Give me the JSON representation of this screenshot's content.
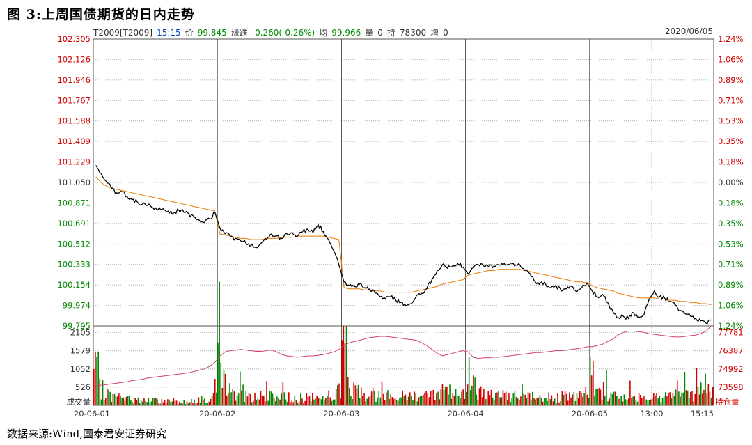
{
  "figure_title": "图 3:上周国债期货的日内走势",
  "source_note": "数据来源:Wind,国泰君安证券研究",
  "header": {
    "contract": "T2009[T2009]",
    "time": "15:15",
    "price_label": "价",
    "price": "99.845",
    "change_label": "涨跌",
    "change": "-0.260(-0.26%)",
    "avg_label": "均",
    "avg": "99.966",
    "volume_label": "量",
    "volume": "0",
    "oi_label": "持",
    "oi": "78300",
    "inc_label": "增",
    "inc": "0",
    "date": "2020/06/05"
  },
  "colors": {
    "up": "#d40000",
    "down": "#008800",
    "price_line": "#000000",
    "avg_line": "#e87a00",
    "oi_line": "#d0406a",
    "grid": "#9a9a9a"
  },
  "chart_data": [
    {
      "type": "line",
      "title": "",
      "y_left_ticks": [
        "102.305",
        "102.126",
        "101.946",
        "101.767",
        "101.588",
        "101.409",
        "101.229",
        "101.050",
        "100.871",
        "100.691",
        "100.512",
        "100.333",
        "100.154",
        "99.974",
        "99.795"
      ],
      "y_right_ticks": [
        "1.24%",
        "1.06%",
        "0.89%",
        "0.71%",
        "0.53%",
        "0.35%",
        "0.18%",
        "0.00%",
        "0.18%",
        "0.35%",
        "0.53%",
        "0.71%",
        "0.89%",
        "1.06%",
        "1.24%"
      ],
      "ylim": [
        99.795,
        102.305
      ],
      "reference_price": 101.05,
      "x_labels": [
        "20-06-01",
        "20-06-02",
        "20-06-03",
        "20-06-04",
        "20-06-05",
        "13:00",
        "15:15"
      ],
      "series": [
        {
          "key": "price",
          "values": [
            101.2,
            101.13,
            101.06,
            101.0,
            100.96,
            100.97,
            100.93,
            100.9,
            100.88,
            100.86,
            100.85,
            100.83,
            100.81,
            100.82,
            100.8,
            100.78,
            100.81,
            100.79,
            100.77,
            100.75,
            100.72,
            100.7,
            100.73,
            100.79,
            100.65,
            100.6,
            100.58,
            100.56,
            100.54,
            100.52,
            100.5,
            100.48,
            100.52,
            100.55,
            100.6,
            100.58,
            100.56,
            100.6,
            100.61,
            100.58,
            100.62,
            100.64,
            100.61,
            100.68,
            100.62,
            100.55,
            100.45,
            100.33,
            100.18,
            100.15,
            100.14,
            100.16,
            100.13,
            100.12,
            100.08,
            100.05,
            100.03,
            100.05,
            100.02,
            100.0,
            99.97,
            99.99,
            100.06,
            100.08,
            100.12,
            100.2,
            100.28,
            100.33,
            100.3,
            100.32,
            100.34,
            100.31,
            100.25,
            100.3,
            100.33,
            100.32,
            100.31,
            100.32,
            100.33,
            100.34,
            100.33,
            100.32,
            100.33,
            100.28,
            100.25,
            100.18,
            100.17,
            100.16,
            100.13,
            100.15,
            100.1,
            100.12,
            100.14,
            100.09,
            100.13,
            100.17,
            100.1,
            100.05,
            100.07,
            100.0,
            99.92,
            99.87,
            99.88,
            99.86,
            99.91,
            99.87,
            99.89,
            100.03,
            100.1,
            100.05,
            100.04,
            100.01,
            99.98,
            99.93,
            99.9,
            99.88,
            99.86,
            99.84,
            99.82,
            99.845
          ]
        },
        {
          "key": "avg",
          "values": [
            101.1,
            101.05,
            101.02,
            101.0,
            100.99,
            100.98,
            100.97,
            100.96,
            100.95,
            100.94,
            100.93,
            100.92,
            100.91,
            100.9,
            100.89,
            100.88,
            100.87,
            100.86,
            100.85,
            100.84,
            100.83,
            100.82,
            100.81,
            100.8,
            100.6,
            100.59,
            100.58,
            100.57,
            100.56,
            100.56,
            100.55,
            100.55,
            100.55,
            100.56,
            100.56,
            100.56,
            100.57,
            100.57,
            100.57,
            100.58,
            100.58,
            100.58,
            100.58,
            100.58,
            100.58,
            100.57,
            100.56,
            100.55,
            100.13,
            100.12,
            100.12,
            100.12,
            100.11,
            100.11,
            100.1,
            100.1,
            100.09,
            100.09,
            100.09,
            100.09,
            100.09,
            100.09,
            100.1,
            100.11,
            100.12,
            100.13,
            100.14,
            100.16,
            100.17,
            100.18,
            100.19,
            100.2,
            100.24,
            100.25,
            100.26,
            100.27,
            100.28,
            100.28,
            100.29,
            100.29,
            100.29,
            100.29,
            100.29,
            100.28,
            100.27,
            100.26,
            100.25,
            100.24,
            100.23,
            100.22,
            100.21,
            100.2,
            100.19,
            100.18,
            100.18,
            100.17,
            100.15,
            100.13,
            100.12,
            100.11,
            100.1,
            100.08,
            100.07,
            100.06,
            100.05,
            100.04,
            100.04,
            100.04,
            100.04,
            100.03,
            100.03,
            100.02,
            100.02,
            100.01,
            100.01,
            100.0,
            100.0,
            99.99,
            99.99,
            99.98
          ]
        }
      ]
    },
    {
      "type": "bar",
      "title": "",
      "ylabel": "成交量",
      "y2label": "持仓量",
      "y_left_ticks": [
        "2105",
        "1579",
        "1052",
        "526"
      ],
      "y_right_ticks": [
        "77781",
        "76387",
        "74992",
        "73598"
      ],
      "ylim": [
        0,
        2300
      ],
      "volume_profile": [
        1200,
        600,
        450,
        350,
        300,
        260,
        230,
        210,
        200,
        190,
        180,
        170,
        170,
        160,
        160,
        150,
        150,
        150,
        160,
        170,
        180,
        190,
        220,
        380,
        1500,
        800,
        600,
        500,
        420,
        380,
        360,
        340,
        330,
        320,
        320,
        310,
        300,
        300,
        290,
        290,
        280,
        280,
        290,
        300,
        320,
        350,
        400,
        650,
        1900,
        900,
        650,
        520,
        460,
        420,
        400,
        380,
        360,
        350,
        340,
        340,
        340,
        350,
        380,
        420,
        460,
        500,
        520,
        500,
        480,
        470,
        480,
        600,
        1300,
        700,
        560,
        470,
        420,
        390,
        370,
        350,
        340,
        330,
        320,
        310,
        300,
        300,
        300,
        300,
        300,
        310,
        320,
        330,
        340,
        360,
        380,
        420,
        1100,
        600,
        480,
        420,
        380,
        360,
        350,
        340,
        340,
        350,
        360,
        400,
        420,
        380,
        360,
        350,
        360,
        380,
        400,
        420,
        460,
        520,
        620,
        800
      ],
      "open_interest": [
        73700,
        73750,
        73800,
        73850,
        73900,
        73950,
        74000,
        74100,
        74150,
        74200,
        74300,
        74350,
        74400,
        74450,
        74500,
        74550,
        74600,
        74650,
        74700,
        74800,
        74900,
        75000,
        75200,
        75500,
        76000,
        76300,
        76400,
        76450,
        76500,
        76450,
        76400,
        76350,
        76350,
        76400,
        76450,
        76300,
        76100,
        76000,
        75950,
        75900,
        75950,
        76000,
        76000,
        76050,
        76100,
        76200,
        76300,
        76500,
        76800,
        77000,
        77100,
        77200,
        77300,
        77400,
        77450,
        77500,
        77500,
        77450,
        77400,
        77350,
        77300,
        77250,
        77200,
        77000,
        76800,
        76500,
        76200,
        76000,
        76100,
        76200,
        76300,
        76400,
        76300,
        75900,
        75800,
        75850,
        75850,
        75900,
        75900,
        75950,
        76000,
        76050,
        76100,
        76150,
        76200,
        76250,
        76250,
        76300,
        76350,
        76400,
        76400,
        76450,
        76500,
        76550,
        76600,
        76700,
        76700,
        76800,
        76900,
        77100,
        77300,
        77600,
        77800,
        77900,
        77900,
        77850,
        77800,
        77700,
        77650,
        77600,
        77550,
        77500,
        77450,
        77450,
        77500,
        77550,
        77600,
        77700,
        77900,
        78300
      ]
    }
  ]
}
